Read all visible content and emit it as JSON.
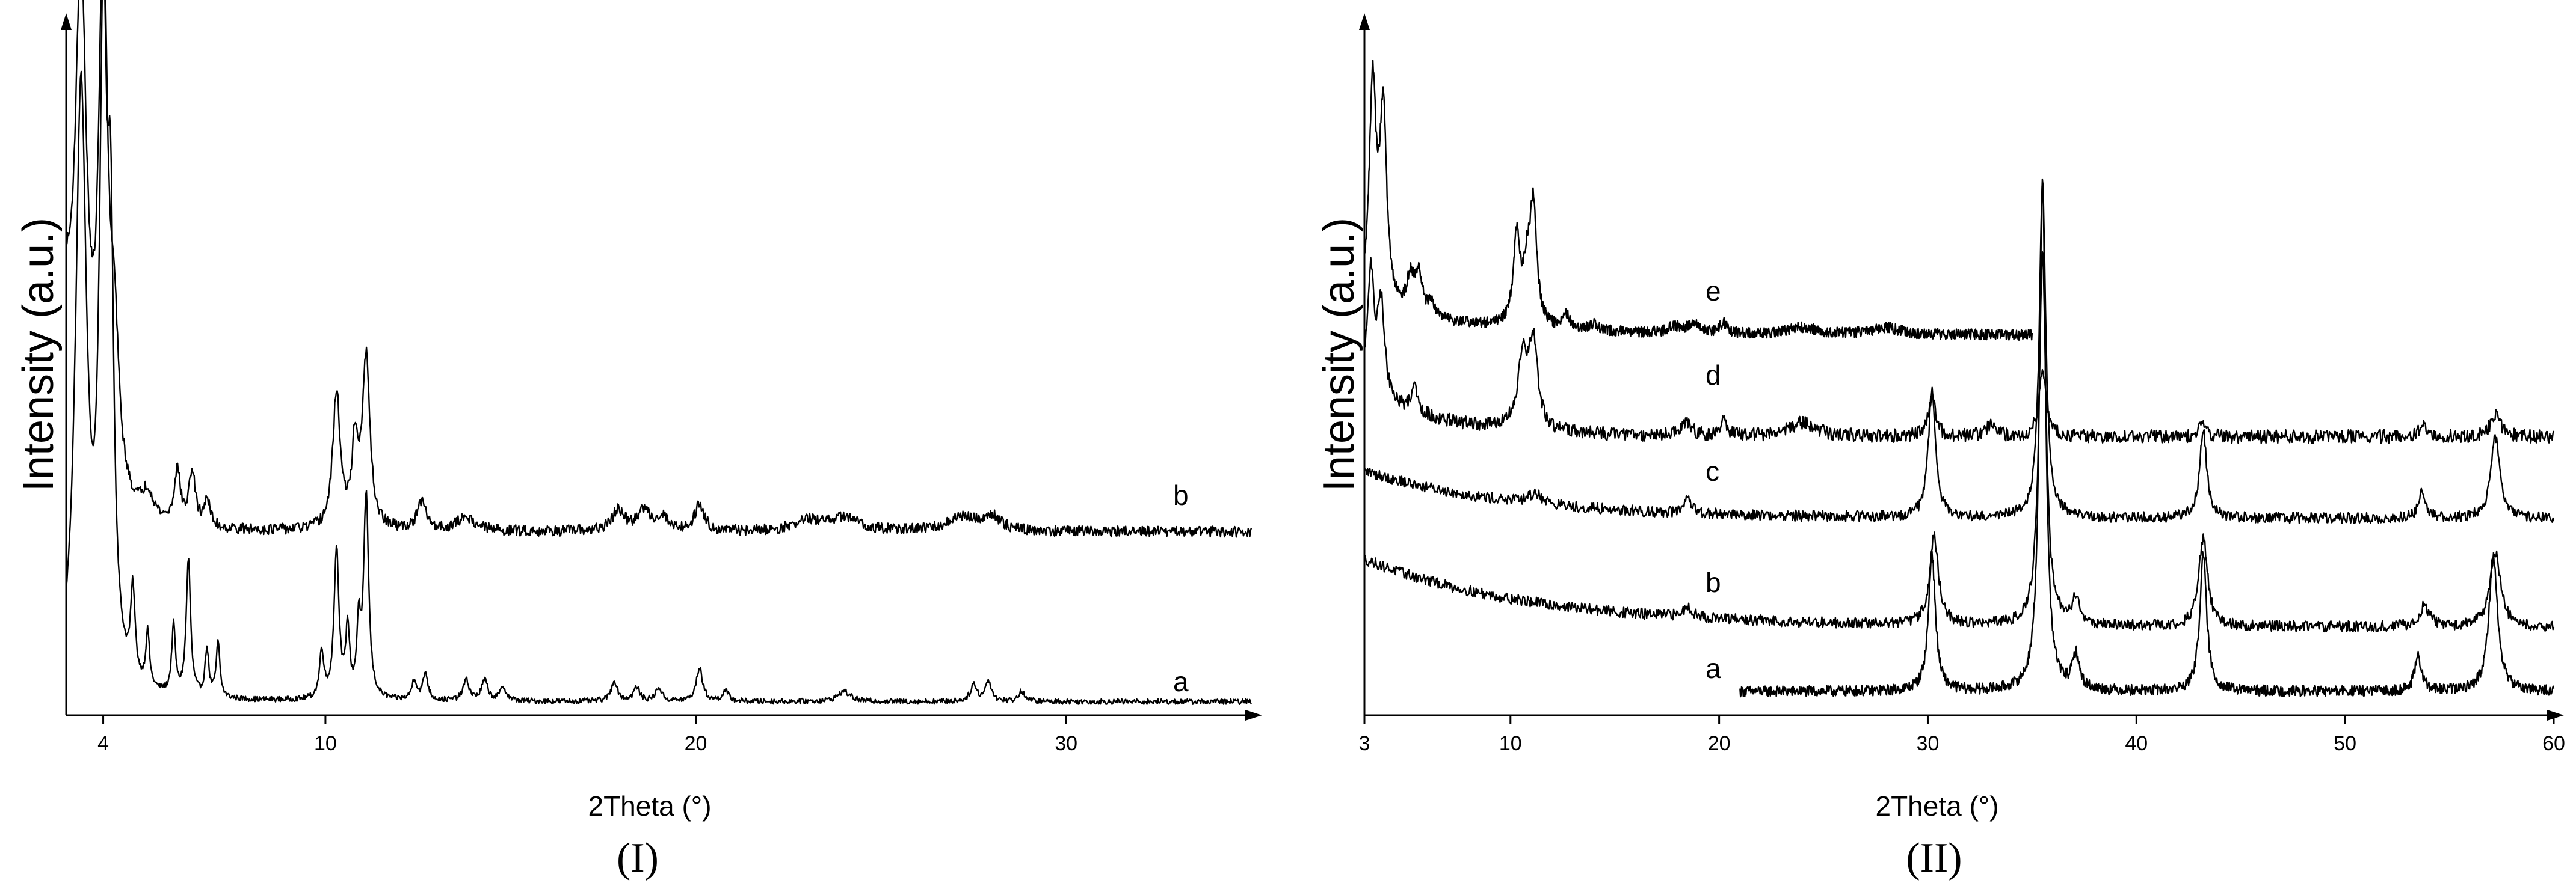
{
  "chart_data": [
    {
      "type": "line",
      "panel_label": "(I)",
      "xlabel": "2Theta (°)",
      "ylabel": "Intensity (a.u.)",
      "x_ticks": [
        4,
        10,
        20,
        30
      ],
      "xlim": [
        3,
        35
      ],
      "series": [
        {
          "name": "a",
          "baseline": 0.02,
          "noise": 0.004,
          "peaks": [
            [
              3.4,
              0.88,
              0.18
            ],
            [
              4.0,
              0.92,
              0.12
            ],
            [
              4.2,
              0.55,
              0.1
            ],
            [
              4.8,
              0.13,
              0.07
            ],
            [
              5.2,
              0.08,
              0.06
            ],
            [
              5.9,
              0.1,
              0.06
            ],
            [
              6.3,
              0.2,
              0.07
            ],
            [
              6.8,
              0.07,
              0.06
            ],
            [
              7.1,
              0.08,
              0.06
            ],
            [
              9.9,
              0.07,
              0.07
            ],
            [
              10.3,
              0.22,
              0.08
            ],
            [
              10.6,
              0.1,
              0.06
            ],
            [
              10.9,
              0.1,
              0.06
            ],
            [
              11.1,
              0.3,
              0.08
            ],
            [
              12.4,
              0.03,
              0.08
            ],
            [
              12.7,
              0.04,
              0.08
            ],
            [
              13.8,
              0.03,
              0.1
            ],
            [
              14.3,
              0.03,
              0.1
            ],
            [
              14.8,
              0.02,
              0.1
            ],
            [
              17.8,
              0.03,
              0.1
            ],
            [
              18.4,
              0.02,
              0.1
            ],
            [
              19.0,
              0.02,
              0.1
            ],
            [
              20.1,
              0.05,
              0.1
            ],
            [
              20.8,
              0.015,
              0.1
            ],
            [
              24.0,
              0.015,
              0.2
            ],
            [
              27.5,
              0.025,
              0.1
            ],
            [
              27.9,
              0.03,
              0.1
            ],
            [
              28.8,
              0.015,
              0.1
            ]
          ]
        },
        {
          "name": "b",
          "baseline": 0.27,
          "noise": 0.008,
          "decay": [
            0.3,
            0.5
          ],
          "peaks": [
            [
              3.4,
              0.68,
              0.18
            ],
            [
              4.0,
              0.78,
              0.14
            ],
            [
              4.3,
              0.2,
              0.15
            ],
            [
              5.2,
              0.04,
              0.2
            ],
            [
              6.0,
              0.08,
              0.1
            ],
            [
              6.4,
              0.08,
              0.1
            ],
            [
              6.8,
              0.04,
              0.1
            ],
            [
              10.3,
              0.2,
              0.12
            ],
            [
              10.8,
              0.12,
              0.1
            ],
            [
              11.1,
              0.25,
              0.12
            ],
            [
              12.6,
              0.04,
              0.15
            ],
            [
              13.8,
              0.02,
              0.3
            ],
            [
              17.9,
              0.03,
              0.2
            ],
            [
              18.6,
              0.03,
              0.2
            ],
            [
              19.1,
              0.02,
              0.2
            ],
            [
              20.1,
              0.04,
              0.15
            ],
            [
              23.0,
              0.015,
              0.4
            ],
            [
              24.0,
              0.02,
              0.5
            ],
            [
              27.2,
              0.02,
              0.5
            ],
            [
              28.0,
              0.02,
              0.3
            ]
          ]
        }
      ]
    },
    {
      "type": "line",
      "panel_label": "(II)",
      "xlabel": "2Theta (°)",
      "ylabel": "Intensity (a.u.)",
      "x_ticks": [
        3,
        10,
        20,
        30,
        40,
        50,
        60
      ],
      "xlim": [
        3,
        60
      ],
      "series": [
        {
          "name": "a",
          "x_range": [
            21,
            60
          ],
          "baseline": 0.035,
          "noise": 0.008,
          "peaks": [
            [
              30.2,
              0.2,
              0.2
            ],
            [
              35.5,
              0.75,
              0.18
            ],
            [
              37.1,
              0.05,
              0.2
            ],
            [
              43.2,
              0.2,
              0.2
            ],
            [
              53.5,
              0.05,
              0.2
            ],
            [
              57.1,
              0.2,
              0.25
            ]
          ]
        },
        {
          "name": "b",
          "x_range": [
            3,
            60
          ],
          "baseline": 0.13,
          "noise": 0.008,
          "decay": [
            0.1,
            8
          ],
          "peaks": [
            [
              18.5,
              0.015,
              0.3
            ],
            [
              30.3,
              0.13,
              0.25
            ],
            [
              35.5,
              0.55,
              0.2
            ],
            [
              37.1,
              0.04,
              0.2
            ],
            [
              43.2,
              0.13,
              0.25
            ],
            [
              53.8,
              0.03,
              0.3
            ],
            [
              57.2,
              0.11,
              0.3
            ]
          ]
        },
        {
          "name": "c",
          "x_range": [
            3,
            60
          ],
          "baseline": 0.29,
          "noise": 0.008,
          "decay": [
            0.07,
            7
          ],
          "peaks": [
            [
              11.2,
              0.015,
              0.4
            ],
            [
              18.5,
              0.02,
              0.2
            ],
            [
              30.2,
              0.19,
              0.2
            ],
            [
              35.5,
              0.5,
              0.18
            ],
            [
              43.2,
              0.13,
              0.2
            ],
            [
              53.7,
              0.04,
              0.2
            ],
            [
              57.2,
              0.12,
              0.25
            ]
          ]
        },
        {
          "name": "d",
          "x_range": [
            3,
            60
          ],
          "baseline": 0.41,
          "noise": 0.01,
          "decay": [
            0.06,
            4
          ],
          "peaks": [
            [
              3.3,
              0.18,
              0.2
            ],
            [
              3.8,
              0.14,
              0.2
            ],
            [
              5.4,
              0.04,
              0.2
            ],
            [
              10.6,
              0.1,
              0.3
            ],
            [
              11.1,
              0.12,
              0.25
            ],
            [
              18.4,
              0.02,
              0.3
            ],
            [
              20.2,
              0.02,
              0.2
            ],
            [
              24.0,
              0.02,
              0.8
            ],
            [
              30.2,
              0.06,
              0.2
            ],
            [
              33.0,
              0.015,
              0.3
            ],
            [
              35.5,
              0.1,
              0.2
            ],
            [
              43.2,
              0.02,
              0.2
            ],
            [
              53.8,
              0.015,
              0.3
            ],
            [
              57.2,
              0.03,
              0.3
            ]
          ]
        },
        {
          "name": "e",
          "x_range": [
            3,
            35
          ],
          "baseline": 0.56,
          "noise": 0.008,
          "decay": [
            0.04,
            5
          ],
          "peaks": [
            [
              3.4,
              0.32,
              0.2
            ],
            [
              3.9,
              0.28,
              0.2
            ],
            [
              5.2,
              0.05,
              0.2
            ],
            [
              5.6,
              0.06,
              0.2
            ],
            [
              6.2,
              0.02,
              0.2
            ],
            [
              10.3,
              0.13,
              0.2
            ],
            [
              10.8,
              0.07,
              0.2
            ],
            [
              11.1,
              0.17,
              0.2
            ],
            [
              12.7,
              0.02,
              0.2
            ],
            [
              14.0,
              0.01,
              0.3
            ],
            [
              17.8,
              0.01,
              0.3
            ],
            [
              18.8,
              0.015,
              0.4
            ],
            [
              20.2,
              0.015,
              0.2
            ],
            [
              24.0,
              0.01,
              0.8
            ],
            [
              28.0,
              0.01,
              0.8
            ]
          ]
        }
      ]
    }
  ]
}
